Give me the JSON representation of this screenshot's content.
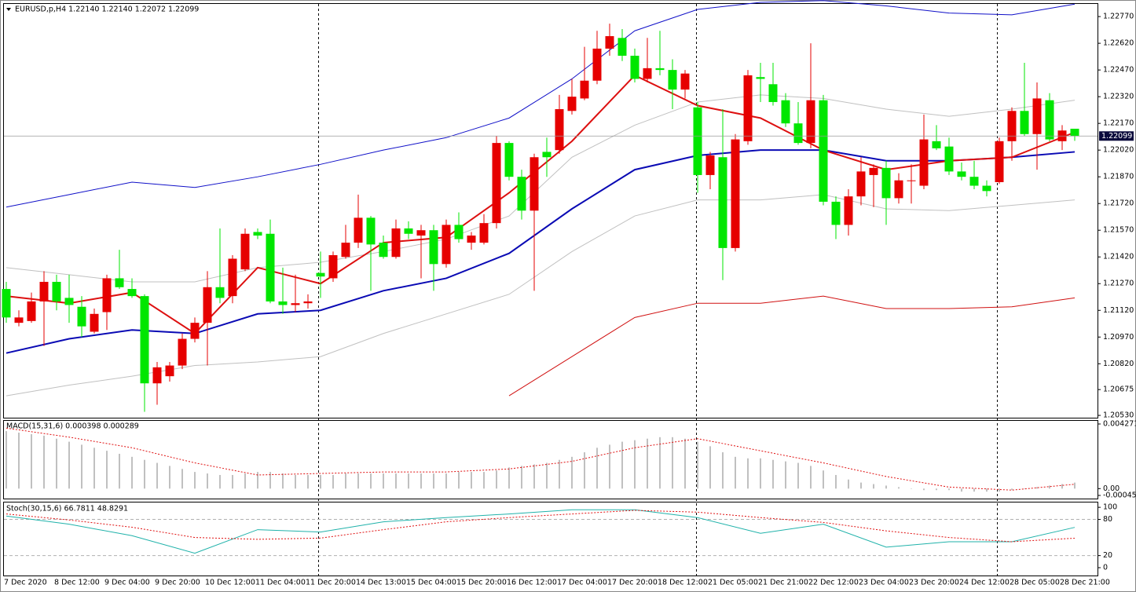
{
  "chart_data": [
    {
      "type": "candlestick",
      "title": "EURUSD,p,H4  1.22140 1.22140 1.22072 1.22099",
      "up_color": "#e60000",
      "down_color": "#00e600",
      "categories": [
        "7 Dec 2020",
        null,
        null,
        null,
        "8 Dec 12:00",
        null,
        null,
        null,
        "9 Dec 04:00",
        null,
        null,
        null,
        "9 Dec 20:00",
        null,
        null,
        null,
        "10 Dec 12:00",
        null,
        null,
        null,
        "11 Dec 04:00",
        null,
        null,
        null,
        "11 Dec 20:00",
        null,
        null,
        null,
        "14 Dec 13:00",
        null,
        null,
        null,
        "15 Dec 04:00",
        null,
        null,
        null,
        "15 Dec 20:00",
        null,
        null,
        null,
        "16 Dec 12:00",
        null,
        null,
        null,
        "17 Dec 04:00",
        null,
        null,
        null,
        "17 Dec 20:00",
        null,
        null,
        null,
        "18 Dec 12:00",
        null,
        null,
        null,
        "21 Dec 05:00",
        null,
        null,
        null,
        "21 Dec 21:00",
        null,
        null,
        null,
        "22 Dec 12:00",
        null,
        null,
        null,
        "23 Dec 04:00",
        null,
        null,
        null,
        "23 Dec 20:00",
        null,
        null,
        null,
        "24 Dec 12:00",
        null,
        null,
        null,
        "28 Dec 05:00",
        null,
        null,
        null,
        "28 Dec 21:00",
        null
      ],
      "candles": [
        [
          1.2124,
          1.2128,
          1.2105,
          1.2108
        ],
        [
          1.2105,
          1.2112,
          1.2103,
          1.2108
        ],
        [
          1.2106,
          1.2122,
          1.2105,
          1.2117
        ],
        [
          1.2117,
          1.2134,
          1.2092,
          1.2128
        ],
        [
          1.2128,
          1.2132,
          1.2112,
          1.2117
        ],
        [
          1.2119,
          1.2132,
          1.2105,
          1.2115
        ],
        [
          1.2114,
          1.212,
          1.2097,
          1.2103
        ],
        [
          1.21,
          1.2113,
          1.2099,
          1.211
        ],
        [
          1.2111,
          1.2132,
          1.2101,
          1.213
        ],
        [
          1.213,
          1.2146,
          1.2124,
          1.2125
        ],
        [
          1.2124,
          1.213,
          1.2119,
          1.212
        ],
        [
          1.212,
          1.2121,
          1.2055,
          1.2071
        ],
        [
          1.2071,
          1.2083,
          1.2059,
          1.208
        ],
        [
          1.2075,
          1.2083,
          1.2072,
          1.2081
        ],
        [
          1.2081,
          1.2099,
          1.2079,
          1.2096
        ],
        [
          1.2096,
          1.2108,
          1.2094,
          1.2105
        ],
        [
          1.2105,
          1.2134,
          1.2081,
          1.2125
        ],
        [
          1.2125,
          1.2158,
          1.2116,
          1.2119
        ],
        [
          1.212,
          1.2143,
          1.2116,
          1.2141
        ],
        [
          1.2135,
          1.2158,
          1.2134,
          1.2155
        ],
        [
          1.2156,
          1.2158,
          1.2152,
          1.2154
        ],
        [
          1.2155,
          1.2163,
          1.2116,
          1.2117
        ],
        [
          1.2117,
          1.2136,
          1.211,
          1.2115
        ],
        [
          1.2115,
          1.2132,
          1.2111,
          1.2116
        ],
        [
          1.2116,
          1.2121,
          1.2113,
          1.2117
        ],
        [
          1.2133,
          1.2145,
          1.2119,
          1.2131
        ],
        [
          1.213,
          1.2145,
          1.2128,
          1.2143
        ],
        [
          1.2142,
          1.216,
          1.2141,
          1.215
        ],
        [
          1.215,
          1.2177,
          1.2147,
          1.2164
        ],
        [
          1.2164,
          1.2165,
          1.2123,
          1.2149
        ],
        [
          1.215,
          1.2154,
          1.2141,
          1.2142
        ],
        [
          1.2142,
          1.2163,
          1.2141,
          1.2158
        ],
        [
          1.2158,
          1.2162,
          1.2152,
          1.2155
        ],
        [
          1.2154,
          1.216,
          1.213,
          1.2157
        ],
        [
          1.2157,
          1.216,
          1.2123,
          1.2138
        ],
        [
          1.2138,
          1.2163,
          1.2136,
          1.216
        ],
        [
          1.216,
          1.2167,
          1.215,
          1.2152
        ],
        [
          1.215,
          1.2156,
          1.2146,
          1.2154
        ],
        [
          1.215,
          1.2166,
          1.2149,
          1.2161
        ],
        [
          1.2161,
          1.221,
          1.2158,
          1.2206
        ],
        [
          1.2206,
          1.2207,
          1.2185,
          1.2187
        ],
        [
          1.2187,
          1.2191,
          1.2163,
          1.2168
        ],
        [
          1.2168,
          1.22,
          1.2123,
          1.2198
        ],
        [
          1.2201,
          1.2209,
          1.2187,
          1.2198
        ],
        [
          1.2202,
          1.2233,
          1.22,
          1.2225
        ],
        [
          1.2224,
          1.2242,
          1.2222,
          1.2232
        ],
        [
          1.2231,
          1.226,
          1.223,
          1.2241
        ],
        [
          1.2241,
          1.2269,
          1.2239,
          1.2259
        ],
        [
          1.2259,
          1.2273,
          1.2255,
          1.2266
        ],
        [
          1.2265,
          1.227,
          1.2252,
          1.2255
        ],
        [
          1.2255,
          1.2259,
          1.224,
          1.2242
        ],
        [
          1.2242,
          1.2265,
          1.224,
          1.2248
        ],
        [
          1.2248,
          1.2269,
          1.2244,
          1.2247
        ],
        [
          1.2247,
          1.2253,
          1.2225,
          1.2236
        ],
        [
          1.2236,
          1.2247,
          1.2231,
          1.2245
        ],
        [
          1.2226,
          1.2229,
          1.2178,
          1.2188
        ],
        [
          1.2188,
          1.2201,
          1.218,
          1.2199
        ],
        [
          1.2198,
          1.2225,
          1.2129,
          1.2147
        ],
        [
          1.2147,
          1.2211,
          1.2145,
          1.2208
        ],
        [
          1.2207,
          1.2247,
          1.2205,
          1.2244
        ],
        [
          1.2243,
          1.2251,
          1.2229,
          1.2242
        ],
        [
          1.2239,
          1.2251,
          1.2227,
          1.2229
        ],
        [
          1.223,
          1.2234,
          1.2215,
          1.2217
        ],
        [
          1.2217,
          1.2229,
          1.2205,
          1.2206
        ],
        [
          1.2206,
          1.2262,
          1.2203,
          1.223
        ],
        [
          1.223,
          1.2233,
          1.2171,
          1.2173
        ],
        [
          1.2173,
          1.2176,
          1.2152,
          1.216
        ],
        [
          1.216,
          1.218,
          1.2154,
          1.2176
        ],
        [
          1.2176,
          1.2198,
          1.2171,
          1.219
        ],
        [
          1.2188,
          1.2194,
          1.217,
          1.2192
        ],
        [
          1.2192,
          1.2196,
          1.216,
          1.2175
        ],
        [
          1.2175,
          1.2189,
          1.2172,
          1.2185
        ],
        [
          1.2185,
          1.2194,
          1.2172,
          1.2185
        ],
        [
          1.2182,
          1.2222,
          1.218,
          1.2208
        ],
        [
          1.2207,
          1.2216,
          1.2202,
          1.2203
        ],
        [
          1.2204,
          1.2209,
          1.2188,
          1.219
        ],
        [
          1.219,
          1.2195,
          1.2185,
          1.2187
        ],
        [
          1.2187,
          1.2196,
          1.218,
          1.2182
        ],
        [
          1.2182,
          1.2185,
          1.2176,
          1.2179
        ],
        [
          1.2184,
          1.2209,
          1.2183,
          1.2207
        ],
        [
          1.2207,
          1.2226,
          1.2196,
          1.2224
        ],
        [
          1.2224,
          1.2251,
          1.221,
          1.2211
        ],
        [
          1.2211,
          1.224,
          1.2191,
          1.2231
        ],
        [
          1.223,
          1.2234,
          1.2207,
          1.2208
        ],
        [
          1.2207,
          1.2216,
          1.2202,
          1.2213
        ],
        [
          1.2214,
          1.2214,
          1.22072,
          1.22099
        ]
      ],
      "series": [
        {
          "color": "#1010c8",
          "width": 1,
          "x": [
            0,
            5,
            10,
            15,
            20,
            25,
            30,
            35,
            40,
            45,
            50,
            55,
            60,
            65,
            70,
            75,
            80,
            85
          ],
          "values": [
            1.217,
            1.2177,
            1.2184,
            1.2181,
            1.2187,
            1.2194,
            1.2202,
            1.2209,
            1.222,
            1.2242,
            1.2269,
            1.2281,
            1.2285,
            1.2286,
            1.2283,
            1.2279,
            1.2278,
            1.2284
          ]
        },
        {
          "color": "#c0c0c0",
          "width": 1,
          "x": [
            0,
            5,
            10,
            15,
            20,
            25,
            30,
            35,
            40,
            45,
            50,
            55,
            60,
            65,
            70,
            75,
            80,
            85
          ],
          "values": [
            1.2136,
            1.2132,
            1.2128,
            1.2128,
            1.2136,
            1.2139,
            1.2145,
            1.2152,
            1.2165,
            1.2198,
            1.2216,
            1.2229,
            1.2233,
            1.2231,
            1.2225,
            1.2221,
            1.2225,
            1.223
          ]
        },
        {
          "color": "#0a0ab4",
          "width": 2,
          "x": [
            0,
            5,
            10,
            15,
            20,
            25,
            30,
            35,
            40,
            45,
            50,
            55,
            60,
            65,
            70,
            75,
            80,
            85
          ],
          "values": [
            1.2088,
            1.2096,
            1.2101,
            1.2099,
            1.211,
            1.2112,
            1.2123,
            1.213,
            1.2144,
            1.2169,
            1.2191,
            1.2199,
            1.2202,
            1.2202,
            1.2196,
            1.2196,
            1.2198,
            1.2201
          ]
        },
        {
          "color": "#dd1010",
          "width": 2,
          "x": [
            0,
            5,
            10,
            15,
            20,
            25,
            30,
            35,
            40,
            45,
            50,
            55,
            60,
            65,
            70,
            75,
            80,
            85
          ],
          "values": [
            1.212,
            1.2116,
            1.2122,
            1.2099,
            1.2136,
            1.2127,
            1.215,
            1.2153,
            1.2178,
            1.2207,
            1.2244,
            1.2227,
            1.222,
            1.2202,
            1.2191,
            1.2196,
            1.2198,
            1.2212
          ]
        },
        {
          "color": "#c0c0c0",
          "width": 1,
          "x": [
            0,
            5,
            10,
            15,
            20,
            25,
            30,
            35,
            40,
            45,
            50,
            55,
            60,
            65,
            70,
            75,
            80,
            85
          ],
          "values": [
            1.2064,
            1.207,
            1.2075,
            1.2081,
            1.2083,
            1.2086,
            1.2099,
            1.211,
            1.2121,
            1.2145,
            1.2165,
            1.2174,
            1.2174,
            1.2177,
            1.2169,
            1.2168,
            1.2171,
            1.2174
          ]
        },
        {
          "color": "#d01010",
          "width": 1,
          "x": [
            0,
            5,
            10,
            15,
            20,
            25,
            30,
            35,
            40,
            45,
            50,
            55,
            60,
            65,
            70,
            75,
            80,
            85
          ],
          "values": [
            null,
            null,
            null,
            null,
            null,
            null,
            null,
            null,
            1.2064,
            1.2086,
            1.2108,
            1.2116,
            1.2116,
            1.212,
            1.2113,
            1.2113,
            1.2114,
            1.2119
          ]
        }
      ],
      "current_price": {
        "value": 1.22099,
        "label": "1.22099"
      },
      "ylim": [
        1.20517,
        1.22841
      ],
      "yticks": [
        {
          "value": 1.2277,
          "label": "1.22770"
        },
        {
          "value": 1.2262,
          "label": "1.22620"
        },
        {
          "value": 1.2247,
          "label": "1.22470"
        },
        {
          "value": 1.2232,
          "label": "1.22320"
        },
        {
          "value": 1.2217,
          "label": "1.22170"
        },
        {
          "value": 1.2202,
          "label": "1.22020"
        },
        {
          "value": 1.2187,
          "label": "1.21870"
        },
        {
          "value": 1.2172,
          "label": "1.21720"
        },
        {
          "value": 1.2157,
          "label": "1.21570"
        },
        {
          "value": 1.2142,
          "label": "1.21420"
        },
        {
          "value": 1.2127,
          "label": "1.21270"
        },
        {
          "value": 1.2112,
          "label": "1.21120"
        },
        {
          "value": 1.2097,
          "label": "1.20970"
        },
        {
          "value": 1.2082,
          "label": "1.20820"
        },
        {
          "value": 1.20675,
          "label": "1.20675"
        },
        {
          "value": 1.2053,
          "label": "1.20530"
        }
      ]
    },
    {
      "type": "bar",
      "title": "MACD(15,31,6) 0.000398 0.000289",
      "color": "#c0c0c0",
      "values": [
        0.0038,
        0.0037,
        0.0036,
        0.0035,
        0.0033,
        0.0031,
        0.0029,
        0.0027,
        0.0025,
        0.0023,
        0.0021,
        0.0019,
        0.0017,
        0.0015,
        0.0013,
        0.0011,
        0.001,
        0.0009,
        0.0009,
        0.001,
        0.0011,
        0.0011,
        0.001,
        0.0009,
        0.0009,
        0.0009,
        0.0009,
        0.001,
        0.001,
        0.001,
        0.001,
        0.001,
        0.001,
        0.001,
        0.001,
        0.001,
        0.0011,
        0.0011,
        0.0011,
        0.0012,
        0.0014,
        0.0015,
        0.0016,
        0.0017,
        0.0019,
        0.0021,
        0.0024,
        0.0027,
        0.0029,
        0.0031,
        0.0032,
        0.0033,
        0.0034,
        0.0034,
        0.0033,
        0.0031,
        0.0028,
        0.0024,
        0.0021,
        0.002,
        0.002,
        0.0019,
        0.0018,
        0.0017,
        0.0015,
        0.0012,
        0.0009,
        0.0006,
        0.0004,
        0.0003,
        0.0002,
        0.0001,
        0,
        -0.0001,
        -0.0001,
        -0.0001,
        -0.0002,
        -0.0002,
        -0.0002,
        -0.0002,
        -0.0001,
        0,
        0.0001,
        0.0002,
        0.0003,
        0.000398
      ],
      "series": [
        {
          "color": "#e01010",
          "x": [
            0,
            5,
            10,
            15,
            20,
            25,
            30,
            35,
            40,
            45,
            50,
            55,
            60,
            65,
            70,
            75,
            80,
            85
          ],
          "values": [
            0.004,
            0.0034,
            0.0027,
            0.0017,
            0.0009,
            0.001,
            0.0011,
            0.0011,
            0.0013,
            0.0018,
            0.0027,
            0.0033,
            0.0025,
            0.0017,
            0.0008,
            0.0001,
            -0.0001,
            0.000289
          ]
        }
      ],
      "ylim": [
        -0.000451,
        0.004271
      ],
      "yticks": [
        0.004271,
        {
          "value": 0,
          "label": "0.00"
        },
        -0.000451
      ]
    },
    {
      "type": "line",
      "title": "Stoch(30,15,6) 66.7811 48.8291",
      "series": [
        {
          "color": "#20b2aa",
          "x": [
            0,
            5,
            10,
            15,
            20,
            25,
            30,
            35,
            40,
            45,
            50,
            55,
            60,
            65,
            70,
            75,
            80,
            85
          ],
          "values": [
            85.5,
            72,
            53,
            24,
            63,
            59,
            76,
            83,
            89,
            96,
            96,
            83,
            57,
            72,
            34,
            43,
            43,
            66.7811
          ]
        },
        {
          "color": "#e01010",
          "dotted": true,
          "x": [
            0,
            5,
            10,
            15,
            20,
            25,
            30,
            35,
            40,
            45,
            50,
            55,
            60,
            65,
            70,
            75,
            80,
            85
          ],
          "values": [
            89,
            79,
            67,
            50,
            47,
            49,
            63,
            76,
            83,
            89,
            95,
            92,
            83,
            75,
            61,
            50,
            43,
            48.8291
          ]
        }
      ],
      "levels": [
        80,
        20
      ],
      "ylim": [
        -13,
        108
      ],
      "yticks": [
        100,
        80,
        20,
        0
      ]
    }
  ]
}
